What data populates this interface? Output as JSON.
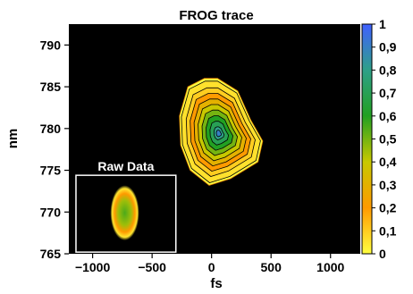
{
  "chart_data": {
    "type": "heatmap",
    "title": "FROG trace",
    "xlabel": "fs",
    "ylabel": "nm",
    "xlim": [
      -1200,
      1250
    ],
    "ylim": [
      765,
      792.5
    ],
    "x_ticks": [
      -1000,
      -500,
      0,
      500,
      1000
    ],
    "y_ticks": [
      765,
      770,
      775,
      780,
      785,
      790
    ],
    "colorbar": {
      "range": [
        0,
        1
      ],
      "ticks": [
        0,
        0.1,
        0.2,
        0.3,
        0.4,
        0.5,
        0.6,
        0.7,
        0.8,
        0.9,
        1
      ],
      "tick_labels": [
        "0",
        "0,1",
        "0,2",
        "0,3",
        "0,4",
        "0,5",
        "0,6",
        "0,7",
        "0,8",
        "0,9",
        "1"
      ],
      "colors": [
        "#ffff40",
        "#ff9a00",
        "#c8c800",
        "#22a022",
        "#2ea088",
        "#4060ff"
      ]
    },
    "main_trace": {
      "peak_x": 60,
      "peak_y": 779.4,
      "peak_value": 0.9,
      "contour_levels": [
        0.1,
        0.2,
        0.3,
        0.4,
        0.5,
        0.6,
        0.7,
        0.8,
        0.9
      ],
      "outline": [
        [
          -200,
          785
        ],
        [
          -60,
          786
        ],
        [
          50,
          786
        ],
        [
          220,
          784.5
        ],
        [
          330,
          781
        ],
        [
          430,
          778.5
        ],
        [
          390,
          776
        ],
        [
          160,
          774
        ],
        [
          -20,
          773.2
        ],
        [
          -180,
          775
        ],
        [
          -260,
          778
        ],
        [
          -270,
          781.5
        ]
      ]
    },
    "inset": {
      "label": "Raw Data",
      "x_range": [
        -1140,
        -300
      ],
      "y_range": [
        765.2,
        774.4
      ],
      "spot_x": -730,
      "spot_y": 769.9,
      "spot_sigma_x": 55,
      "spot_sigma_y": 1.5
    }
  }
}
